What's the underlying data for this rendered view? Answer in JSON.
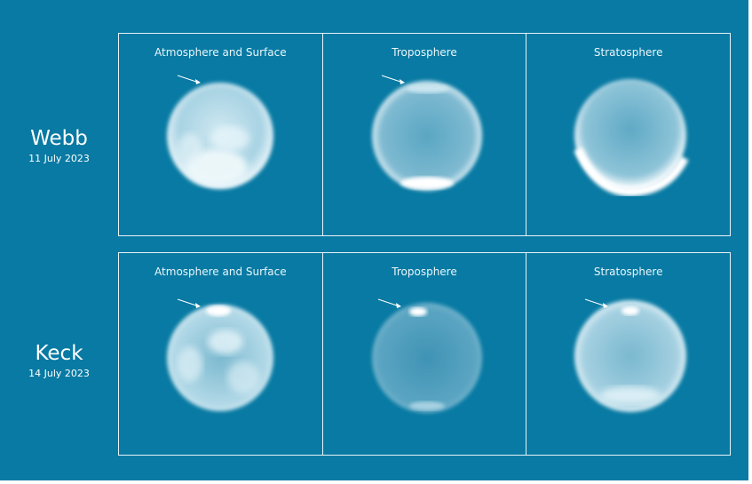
{
  "rows": [
    {
      "name": "Webb",
      "date": "11 July 2023",
      "panels": [
        {
          "title": "Atmosphere and Surface",
          "icon": "planet-surface-icon"
        },
        {
          "title": "Troposphere",
          "icon": "planet-troposphere-icon"
        },
        {
          "title": "Stratosphere",
          "icon": "planet-stratosphere-icon"
        }
      ]
    },
    {
      "name": "Keck",
      "date": "14 July 2023",
      "panels": [
        {
          "title": "Atmosphere and Surface",
          "icon": "planet-surface-icon"
        },
        {
          "title": "Troposphere",
          "icon": "planet-troposphere-icon"
        },
        {
          "title": "Stratosphere",
          "icon": "planet-stratosphere-icon"
        }
      ]
    }
  ],
  "colors": {
    "background": "#087aa3",
    "frame": "#e8f3f8",
    "planet_glow": "#ffffff"
  }
}
